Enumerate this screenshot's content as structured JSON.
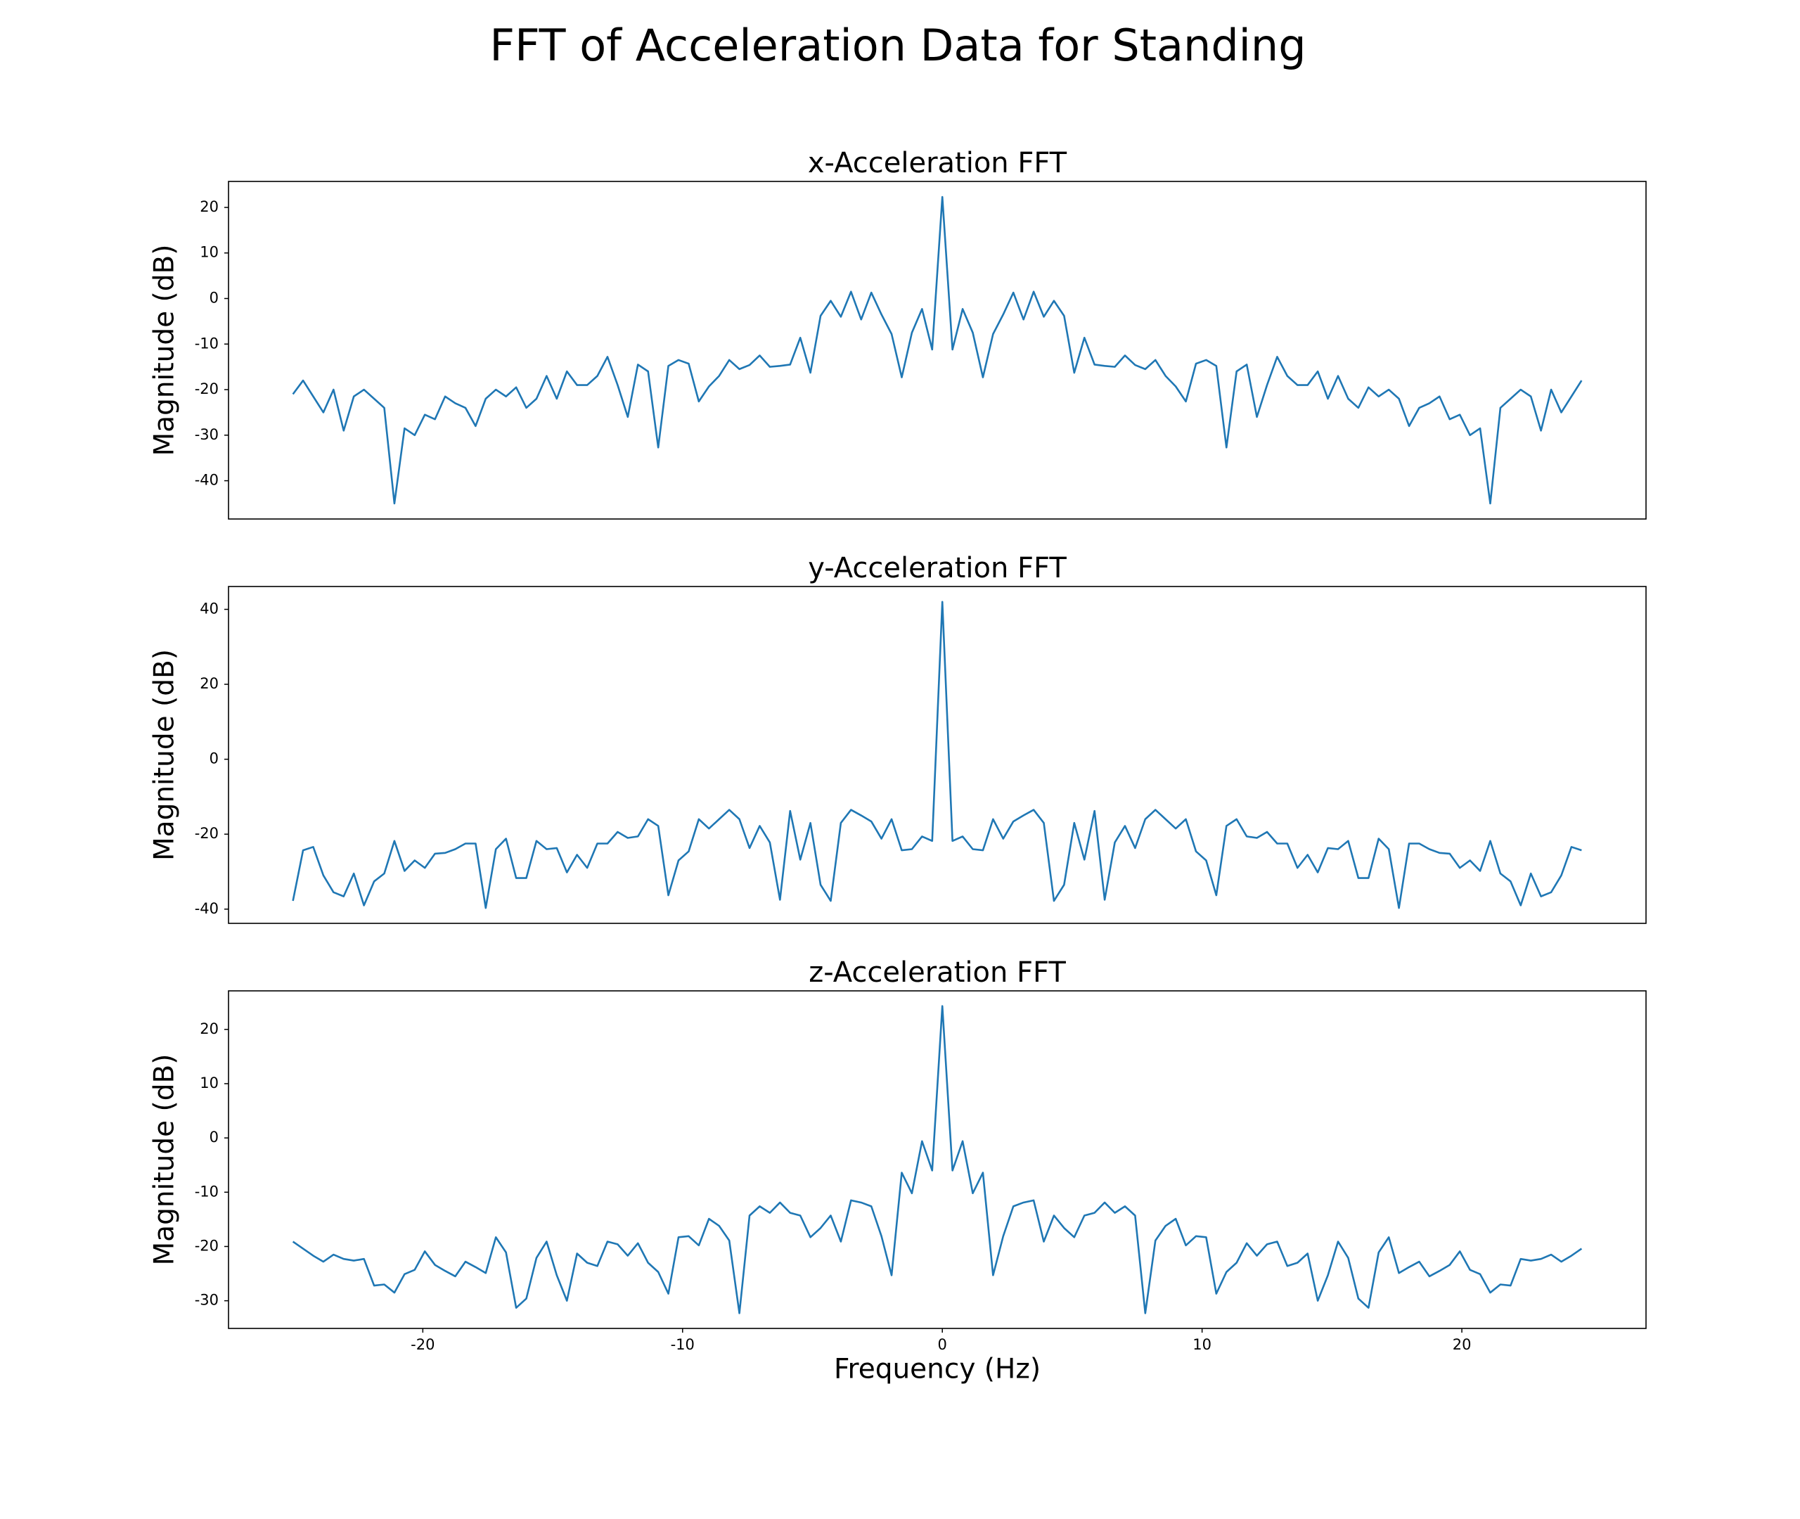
{
  "title": "FFT of Acceleration Data for Standing",
  "chart_data": [
    {
      "type": "line",
      "title": "x-Acceleration FFT",
      "ylabel": "Magnitude (dB)",
      "color": "#1f77b4",
      "x": [
        -25,
        -24.609375,
        -24.21875,
        -23.828125,
        -23.4375,
        -23.046875,
        -22.65625,
        -22.265625,
        -21.875,
        -21.484375,
        -21.09375,
        -20.703125,
        -20.3125,
        -19.921875,
        -19.53125,
        -19.140625,
        -18.75,
        -18.359375,
        -17.96875,
        -17.578125,
        -17.1875,
        -16.796875,
        -16.40625,
        -16.015625,
        -15.625,
        -15.234375,
        -14.84375,
        -14.453125,
        -14.0625,
        -13.671875,
        -13.28125,
        -12.890625,
        -12.5,
        -12.109375,
        -11.71875,
        -11.328125,
        -10.9375,
        -10.546875,
        -10.15625,
        -9.765625,
        -9.375,
        -8.984375,
        -8.59375,
        -8.203125,
        -7.8125,
        -7.421875,
        -7.03125,
        -6.640625,
        -6.25,
        -5.859375,
        -5.46875,
        -5.078125,
        -4.6875,
        -4.296875,
        -3.90625,
        -3.515625,
        -3.125,
        -2.734375,
        -2.34375,
        -1.953125,
        -1.5625,
        -1.171875,
        -0.78125,
        -0.390625,
        0,
        0.390625,
        0.78125,
        1.171875,
        1.5625,
        1.953125,
        2.34375,
        2.734375,
        3.125,
        3.515625,
        3.90625,
        4.296875,
        4.6875,
        5.078125,
        5.46875,
        5.859375,
        6.25,
        6.640625,
        7.03125,
        7.421875,
        7.8125,
        8.203125,
        8.59375,
        8.984375,
        9.375,
        9.765625,
        10.15625,
        10.546875,
        10.9375,
        11.328125,
        11.71875,
        12.109375,
        12.5,
        12.890625,
        13.28125,
        13.671875,
        14.0625,
        14.453125,
        14.84375,
        15.234375,
        15.625,
        16.015625,
        16.40625,
        16.796875,
        17.1875,
        17.578125,
        17.96875,
        18.359375,
        18.75,
        19.140625,
        19.53125,
        19.921875,
        20.3125,
        20.703125,
        21.09375,
        21.484375,
        21.875,
        22.265625,
        22.65625,
        23.046875,
        23.4375,
        23.828125,
        24.21875,
        24.609375
      ],
      "values": [
        -21,
        -18,
        -21.5,
        -25,
        -20,
        -29,
        -21.5,
        -20,
        -22,
        -24,
        -45,
        -28.5,
        -30,
        -25.5,
        -26.5,
        -21.5,
        -23,
        -24,
        -28,
        -22,
        -20,
        -21.5,
        -19.5,
        -24,
        -22,
        -17,
        -22,
        -16,
        -19,
        -19,
        -17,
        -12.8,
        -19,
        -26,
        -14.5,
        -16,
        -32.7,
        -14.8,
        -13.5,
        -14.3,
        -22.6,
        -19.3,
        -17,
        -13.5,
        -15.5,
        -14.6,
        -12.5,
        -15,
        -14.8,
        -14.5,
        -8.6,
        -16.3,
        -3.8,
        -0.5,
        -4,
        1.5,
        -4.6,
        1.3,
        -3.5,
        -7.8,
        -17.3,
        -7.5,
        -2.3,
        -11.2,
        22.3,
        -11.2,
        -2.3,
        -7.5,
        -17.3,
        -7.8,
        -3.5,
        1.3,
        -4.6,
        1.5,
        -4,
        -0.5,
        -3.8,
        -16.3,
        -8.6,
        -14.5,
        -14.8,
        -15,
        -12.5,
        -14.6,
        -15.5,
        -13.5,
        -17,
        -19.3,
        -22.6,
        -14.3,
        -13.5,
        -14.8,
        -32.7,
        -16,
        -14.5,
        -26,
        -19,
        -12.8,
        -17,
        -19,
        -19,
        -16,
        -22,
        -17,
        -22,
        -24,
        -19.5,
        -21.5,
        -20,
        -22,
        -28,
        -24,
        -23,
        -21.5,
        -26.5,
        -25.5,
        -30,
        -28.5,
        -45,
        -24,
        -22,
        -20,
        -21.5,
        -29,
        -20,
        -25,
        -21.5,
        -18
      ],
      "xlim": [
        -27.48,
        27.09
      ],
      "ylim": [
        -48.4,
        25.7
      ],
      "yticks": [
        -40,
        -30,
        -20,
        -10,
        0,
        10,
        20
      ]
    },
    {
      "type": "line",
      "title": "y-Acceleration FFT",
      "ylabel": "Magnitude (dB)",
      "color": "#1f77b4",
      "x": [
        -25,
        -24.609375,
        -24.21875,
        -23.828125,
        -23.4375,
        -23.046875,
        -22.65625,
        -22.265625,
        -21.875,
        -21.484375,
        -21.09375,
        -20.703125,
        -20.3125,
        -19.921875,
        -19.53125,
        -19.140625,
        -18.75,
        -18.359375,
        -17.96875,
        -17.578125,
        -17.1875,
        -16.796875,
        -16.40625,
        -16.015625,
        -15.625,
        -15.234375,
        -14.84375,
        -14.453125,
        -14.0625,
        -13.671875,
        -13.28125,
        -12.890625,
        -12.5,
        -12.109375,
        -11.71875,
        -11.328125,
        -10.9375,
        -10.546875,
        -10.15625,
        -9.765625,
        -9.375,
        -8.984375,
        -8.59375,
        -8.203125,
        -7.8125,
        -7.421875,
        -7.03125,
        -6.640625,
        -6.25,
        -5.859375,
        -5.46875,
        -5.078125,
        -4.6875,
        -4.296875,
        -3.90625,
        -3.515625,
        -3.125,
        -2.734375,
        -2.34375,
        -1.953125,
        -1.5625,
        -1.171875,
        -0.78125,
        -0.390625,
        0,
        0.390625,
        0.78125,
        1.171875,
        1.5625,
        1.953125,
        2.34375,
        2.734375,
        3.125,
        3.515625,
        3.90625,
        4.296875,
        4.6875,
        5.078125,
        5.46875,
        5.859375,
        6.25,
        6.640625,
        7.03125,
        7.421875,
        7.8125,
        8.203125,
        8.59375,
        8.984375,
        9.375,
        9.765625,
        10.15625,
        10.546875,
        10.9375,
        11.328125,
        11.71875,
        12.109375,
        12.5,
        12.890625,
        13.28125,
        13.671875,
        14.0625,
        14.453125,
        14.84375,
        15.234375,
        15.625,
        16.015625,
        16.40625,
        16.796875,
        17.1875,
        17.578125,
        17.96875,
        18.359375,
        18.75,
        19.140625,
        19.53125,
        19.921875,
        20.3125,
        20.703125,
        21.09375,
        21.484375,
        21.875,
        22.265625,
        22.65625,
        23.046875,
        23.4375,
        23.828125,
        24.21875,
        24.609375
      ],
      "values": [
        -37.8,
        -24.3,
        -23.4,
        -31,
        -35.5,
        -36.6,
        -30.5,
        -39,
        -32.6,
        -30.5,
        -21.8,
        -29.8,
        -27,
        -29,
        -25.2,
        -25,
        -24,
        -22.5,
        -22.5,
        -39.7,
        -24,
        -21.2,
        -31.7,
        -31.7,
        -21.8,
        -24,
        -23.7,
        -30.2,
        -25.5,
        -29,
        -22.5,
        -22.5,
        -19.4,
        -21,
        -20.6,
        -16,
        -17.8,
        -36.3,
        -27,
        -24.6,
        -16,
        -18.5,
        -16,
        -13.5,
        -16,
        -23.7,
        -17.8,
        -22.2,
        -37.5,
        -13.8,
        -26.8,
        -17,
        -33.5,
        -37.8,
        -17,
        -13.5,
        -15,
        -16.6,
        -21.2,
        -16,
        -24.3,
        -24,
        -20.6,
        -21.8,
        42,
        -21.8,
        -20.6,
        -24,
        -24.3,
        -16,
        -21.2,
        -16.6,
        -15,
        -13.5,
        -17,
        -37.8,
        -33.5,
        -17,
        -26.8,
        -13.8,
        -37.5,
        -22.2,
        -17.8,
        -23.7,
        -16,
        -13.5,
        -16,
        -18.5,
        -16,
        -24.6,
        -27,
        -36.3,
        -17.8,
        -16,
        -20.6,
        -21,
        -19.4,
        -22.5,
        -22.5,
        -29,
        -25.5,
        -30.2,
        -23.7,
        -24,
        -21.8,
        -31.7,
        -31.7,
        -21.2,
        -24,
        -39.7,
        -22.5,
        -22.5,
        -24,
        -25,
        -25.2,
        -29,
        -27,
        -29.8,
        -21.8,
        -30.5,
        -32.6,
        -39,
        -30.5,
        -36.6,
        -35.5,
        -31,
        -23.4,
        -24.3
      ],
      "xlim": [
        -27.48,
        27.09
      ],
      "ylim": [
        -43.8,
        46.1
      ],
      "yticks": [
        -40,
        -20,
        0,
        20,
        40
      ]
    },
    {
      "type": "line",
      "title": "z-Acceleration FFT",
      "ylabel": "Magnitude (dB)",
      "xlabel": "Frequency (Hz)",
      "color": "#1f77b4",
      "x": [
        -25,
        -24.609375,
        -24.21875,
        -23.828125,
        -23.4375,
        -23.046875,
        -22.65625,
        -22.265625,
        -21.875,
        -21.484375,
        -21.09375,
        -20.703125,
        -20.3125,
        -19.921875,
        -19.53125,
        -19.140625,
        -18.75,
        -18.359375,
        -17.96875,
        -17.578125,
        -17.1875,
        -16.796875,
        -16.40625,
        -16.015625,
        -15.625,
        -15.234375,
        -14.84375,
        -14.453125,
        -14.0625,
        -13.671875,
        -13.28125,
        -12.890625,
        -12.5,
        -12.109375,
        -11.71875,
        -11.328125,
        -10.9375,
        -10.546875,
        -10.15625,
        -9.765625,
        -9.375,
        -8.984375,
        -8.59375,
        -8.203125,
        -7.8125,
        -7.421875,
        -7.03125,
        -6.640625,
        -6.25,
        -5.859375,
        -5.46875,
        -5.078125,
        -4.6875,
        -4.296875,
        -3.90625,
        -3.515625,
        -3.125,
        -2.734375,
        -2.34375,
        -1.953125,
        -1.5625,
        -1.171875,
        -0.78125,
        -0.390625,
        0,
        0.390625,
        0.78125,
        1.171875,
        1.5625,
        1.953125,
        2.34375,
        2.734375,
        3.125,
        3.515625,
        3.90625,
        4.296875,
        4.6875,
        5.078125,
        5.46875,
        5.859375,
        6.25,
        6.640625,
        7.03125,
        7.421875,
        7.8125,
        8.203125,
        8.59375,
        8.984375,
        9.375,
        9.765625,
        10.15625,
        10.546875,
        10.9375,
        11.328125,
        11.71875,
        12.109375,
        12.5,
        12.890625,
        13.28125,
        13.671875,
        14.0625,
        14.453125,
        14.84375,
        15.234375,
        15.625,
        16.015625,
        16.40625,
        16.796875,
        17.1875,
        17.578125,
        17.96875,
        18.359375,
        18.75,
        19.140625,
        19.53125,
        19.921875,
        20.3125,
        20.703125,
        21.09375,
        21.484375,
        21.875,
        22.265625,
        22.65625,
        23.046875,
        23.4375,
        23.828125,
        24.21875,
        24.609375
      ],
      "values": [
        -19.1,
        -20.4,
        -21.7,
        -22.8,
        -21.5,
        -22.3,
        -22.6,
        -22.3,
        -27.2,
        -27,
        -28.5,
        -25.1,
        -24.3,
        -20.9,
        -23.4,
        -24.5,
        -25.5,
        -22.8,
        -23.8,
        -24.9,
        -18.3,
        -21.1,
        -31.3,
        -29.6,
        -22.1,
        -19.1,
        -25.3,
        -30,
        -21.3,
        -23,
        -23.6,
        -19.1,
        -19.6,
        -21.7,
        -19.4,
        -23,
        -24.7,
        -28.7,
        -18.3,
        -18.1,
        -19.8,
        -14.9,
        -16.2,
        -18.9,
        -32.3,
        -14.3,
        -12.6,
        -13.8,
        -11.9,
        -13.8,
        -14.3,
        -18.3,
        -16.6,
        -14.3,
        -19.1,
        -11.5,
        -11.9,
        -12.6,
        -18.1,
        -25.3,
        -6.4,
        -10.2,
        -0.6,
        -6,
        24.3,
        -6,
        -0.6,
        -10.2,
        -6.4,
        -25.3,
        -18.1,
        -12.6,
        -11.9,
        -11.5,
        -19.1,
        -14.3,
        -16.6,
        -18.3,
        -14.3,
        -13.8,
        -11.9,
        -13.8,
        -12.6,
        -14.3,
        -32.3,
        -18.9,
        -16.2,
        -14.9,
        -19.8,
        -18.1,
        -18.3,
        -28.7,
        -24.7,
        -23,
        -19.4,
        -21.7,
        -19.6,
        -19.1,
        -23.6,
        -23,
        -21.3,
        -30,
        -25.3,
        -19.1,
        -22.1,
        -29.6,
        -31.3,
        -21.1,
        -18.3,
        -24.9,
        -23.8,
        -22.8,
        -25.5,
        -24.5,
        -23.4,
        -20.9,
        -24.3,
        -25.1,
        -28.5,
        -27,
        -27.2,
        -22.3,
        -22.6,
        -22.3,
        -21.5,
        -22.8,
        -21.7,
        -20.4
      ],
      "xlim": [
        -27.48,
        27.09
      ],
      "ylim": [
        -35.1,
        27.1
      ],
      "yticks": [
        -30,
        -20,
        -10,
        0,
        10,
        20
      ],
      "xticks": [
        -20,
        -10,
        0,
        10,
        20
      ]
    }
  ]
}
